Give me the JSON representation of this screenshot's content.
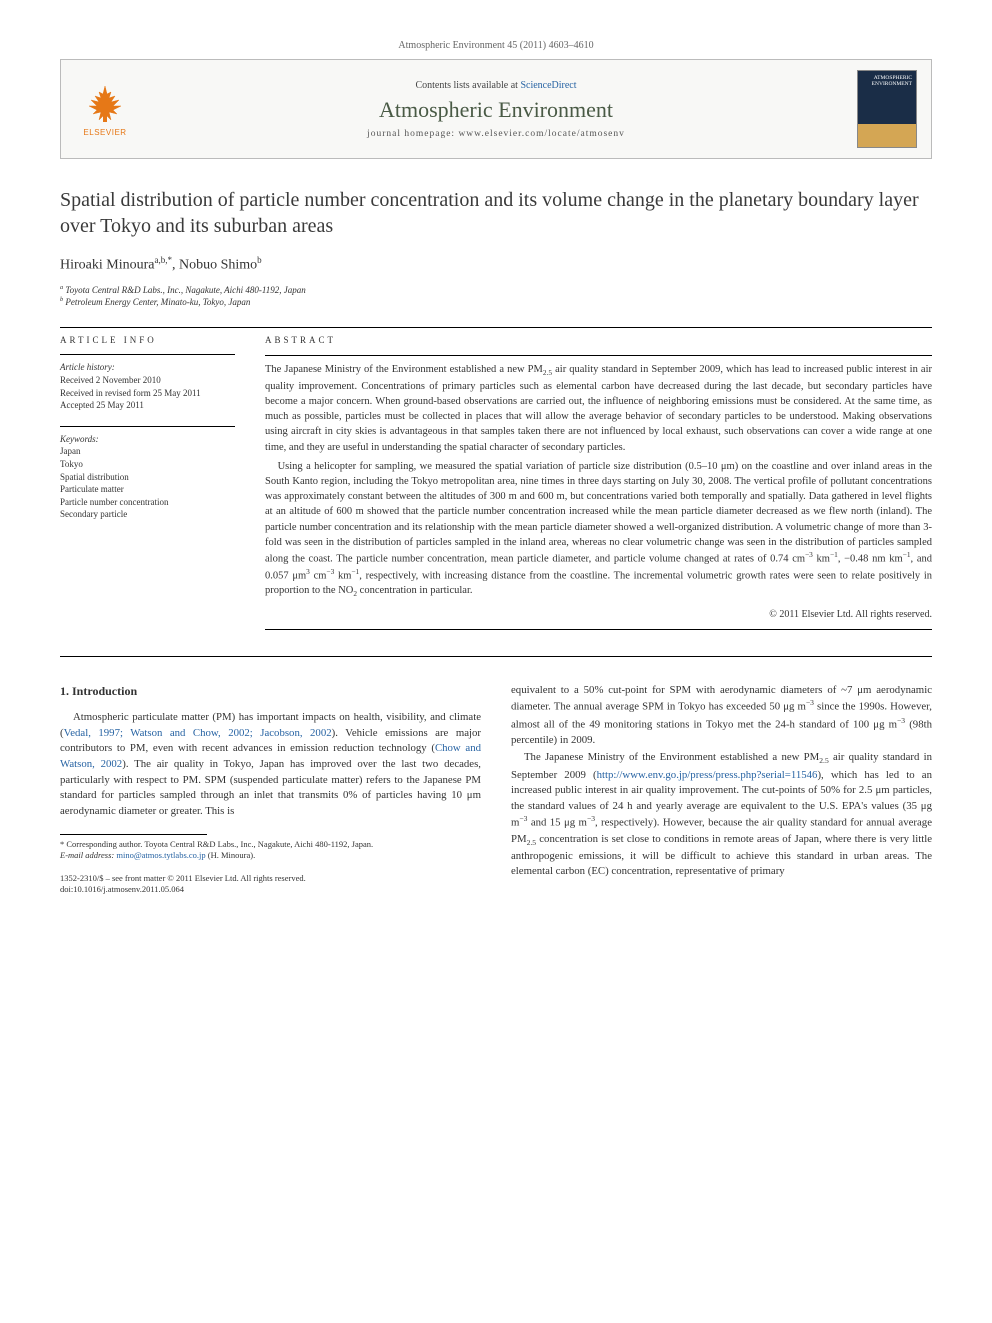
{
  "journal_ref": "Atmospheric Environment 45 (2011) 4603–4610",
  "header": {
    "contents_prefix": "Contents lists available at ",
    "contents_link": "ScienceDirect",
    "journal_name": "Atmospheric Environment",
    "homepage_prefix": "journal homepage: ",
    "homepage_url": "www.elsevier.com/locate/atmosenv",
    "publisher": "ELSEVIER",
    "cover_label": "ATMOSPHERIC ENVIRONMENT"
  },
  "title": "Spatial distribution of particle number concentration and its volume change in the planetary boundary layer over Tokyo and its suburban areas",
  "authors_html": "Hiroaki Minoura<sup>a,b,*</sup>, Nobuo Shimo<sup>b</sup>",
  "affiliations": [
    "a Toyota Central R&D Labs., Inc., Nagakute, Aichi 480-1192, Japan",
    "b Petroleum Energy Center, Minato-ku, Tokyo, Japan"
  ],
  "article_info_label": "ARTICLE INFO",
  "abstract_label": "ABSTRACT",
  "history": {
    "label": "Article history:",
    "received": "Received 2 November 2010",
    "revised": "Received in revised form 25 May 2011",
    "accepted": "Accepted 25 May 2011"
  },
  "keywords": {
    "label": "Keywords:",
    "items": [
      "Japan",
      "Tokyo",
      "Spatial distribution",
      "Particulate matter",
      "Particle number concentration",
      "Secondary particle"
    ]
  },
  "abstract": {
    "p1": "The Japanese Ministry of the Environment established a new PM2.5 air quality standard in September 2009, which has lead to increased public interest in air quality improvement. Concentrations of primary particles such as elemental carbon have decreased during the last decade, but secondary particles have become a major concern. When ground-based observations are carried out, the influence of neighboring emissions must be considered. At the same time, as much as possible, particles must be collected in places that will allow the average behavior of secondary particles to be understood. Making observations using aircraft in city skies is advantageous in that samples taken there are not influenced by local exhaust, such observations can cover a wide range at one time, and they are useful in understanding the spatial character of secondary particles.",
    "p2": "Using a helicopter for sampling, we measured the spatial variation of particle size distribution (0.5–10 μm) on the coastline and over inland areas in the South Kanto region, including the Tokyo metropolitan area, nine times in three days starting on July 30, 2008. The vertical profile of pollutant concentrations was approximately constant between the altitudes of 300 m and 600 m, but concentrations varied both temporally and spatially. Data gathered in level flights at an altitude of 600 m showed that the particle number concentration increased while the mean particle diameter decreased as we flew north (inland). The particle number concentration and its relationship with the mean particle diameter showed a well-organized distribution. A volumetric change of more than 3-fold was seen in the distribution of particles sampled in the inland area, whereas no clear volumetric change was seen in the distribution of particles sampled along the coast. The particle number concentration, mean particle diameter, and particle volume changed at rates of 0.74 cm−3 km−1, −0.48 nm km−1, and 0.057 μm3 cm−3 km−1, respectively, with increasing distance from the coastline. The incremental volumetric growth rates were seen to relate positively in proportion to the NO2 concentration in particular.",
    "copyright": "© 2011 Elsevier Ltd. All rights reserved."
  },
  "intro": {
    "heading": "1. Introduction",
    "left_p1_html": "Atmospheric particulate matter (PM) has important impacts on health, visibility, and climate (<a href='#'>Vedal, 1997; Watson and Chow, 2002; Jacobson, 2002</a>). Vehicle emissions are major contributors to PM, even with recent advances in emission reduction technology (<a href='#'>Chow and Watson, 2002</a>). The air quality in Tokyo, Japan has improved over the last two decades, particularly with respect to PM. SPM (suspended particulate matter) refers to the Japanese PM standard for particles sampled through an inlet that transmits 0% of particles having 10 μm aerodynamic diameter or greater. This is",
    "right_p1_html": "equivalent to a 50% cut-point for SPM with aerodynamic diameters of ~7 μm aerodynamic diameter. The annual average SPM in Tokyo has exceeded 50 μg m<sup>−3</sup> since the 1990s. However, almost all of the 49 monitoring stations in Tokyo met the 24-h standard of 100 μg m<sup>−3</sup> (98th percentile) in 2009.",
    "right_p2_html": "The Japanese Ministry of the Environment established a new PM<sub>2.5</sub> air quality standard in September 2009 (<a href='#'>http://www.env.go.jp/press/press.php?serial=11546</a>), which has led to an increased public interest in air quality improvement. The cut-points of 50% for 2.5 μm particles, the standard values of 24 h and yearly average are equivalent to the U.S. EPA's values (35 μg m<sup>−3</sup> and 15 μg m<sup>−3</sup>, respectively). However, because the air quality standard for annual average PM<sub>2.5</sub> concentration is set close to conditions in remote areas of Japan, where there is very little anthropogenic emissions, it will be difficult to achieve this standard in urban areas. The elemental carbon (EC) concentration, representative of primary"
  },
  "footnote": {
    "corr": "* Corresponding author. Toyota Central R&D Labs., Inc., Nagakute, Aichi 480-1192, Japan.",
    "email_label": "E-mail address: ",
    "email": "mino@atmos.tytlabs.co.jp",
    "email_suffix": " (H. Minoura)."
  },
  "doi_block": {
    "line1": "1352-2310/$ – see front matter © 2011 Elsevier Ltd. All rights reserved.",
    "line2": "doi:10.1016/j.atmosenv.2011.05.064"
  }
}
